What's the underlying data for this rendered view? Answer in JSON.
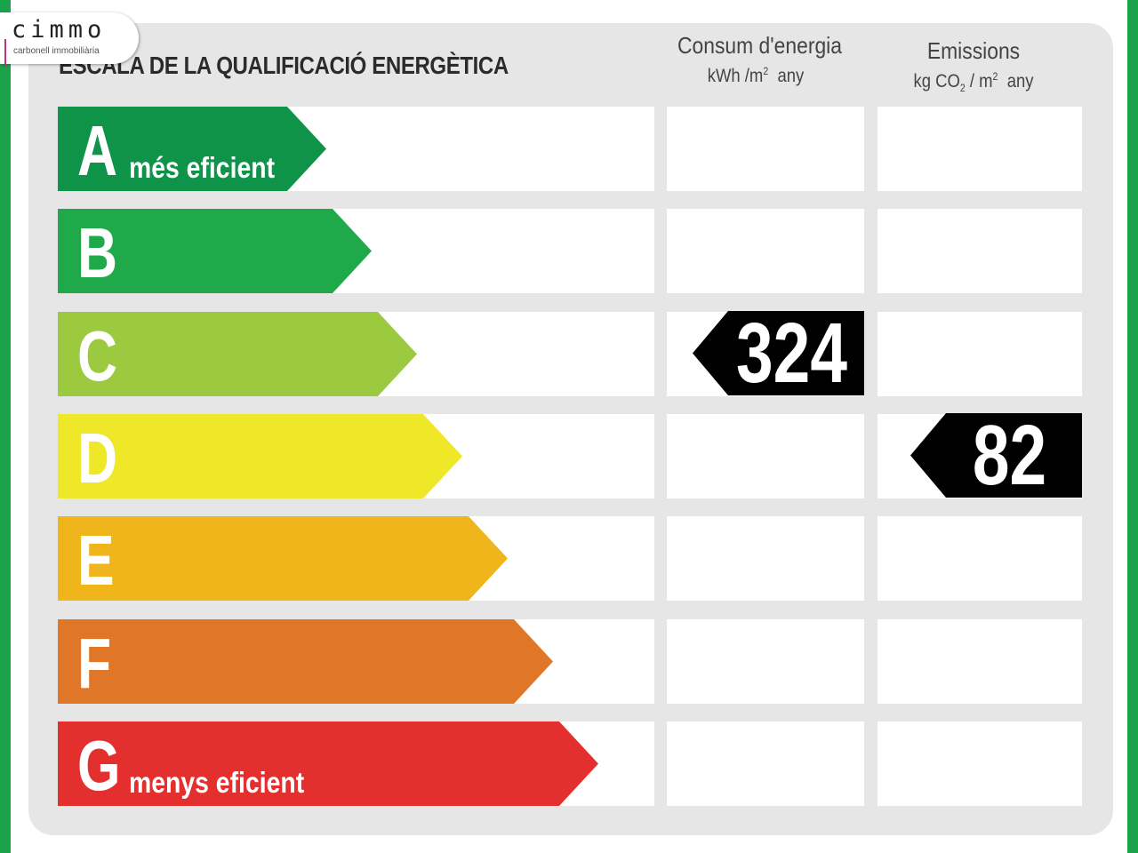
{
  "logo": {
    "word": "cimmo",
    "tagline": "carbonell immobiliària"
  },
  "title": "ESCALA DE LA QUALIFICACIÓ ENERGÈTICA",
  "columns": {
    "consum": {
      "label": "Consum d'energia",
      "unit_pre": "kWh /m",
      "unit_sup": "2",
      "unit_post": "any"
    },
    "emissions": {
      "label": "Emissions",
      "unit_a": "kg CO",
      "unit_sub": "2",
      "unit_b": "/ m",
      "unit_sup": "2",
      "unit_post": "any"
    }
  },
  "classes": [
    {
      "letter": "A",
      "label": "més eficient",
      "color": "#0e9349"
    },
    {
      "letter": "B",
      "label": "",
      "color": "#20a94a"
    },
    {
      "letter": "C",
      "label": "",
      "color": "#9bc93f"
    },
    {
      "letter": "D",
      "label": "",
      "color": "#eee829"
    },
    {
      "letter": "E",
      "label": "",
      "color": "#f1b51c"
    },
    {
      "letter": "F",
      "label": "",
      "color": "#e07628"
    },
    {
      "letter": "G",
      "label": "menys eficient",
      "color": "#e3302e"
    }
  ],
  "ratings": {
    "consum": {
      "value": "324",
      "class": "C"
    },
    "emissions": {
      "value": "82",
      "class": "D"
    }
  },
  "colors": {
    "badge": "#000000",
    "panel": "#e6e6e6",
    "edge": "#1aa34a"
  }
}
